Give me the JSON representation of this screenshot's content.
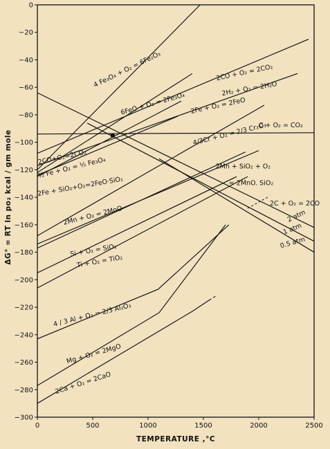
{
  "chart_data": {
    "type": "line",
    "xlabel": "TEMPERATURE ,°C",
    "ylabel": "ΔG° = RT ln po₂  kcal / gm mole",
    "xlim": [
      0,
      2500
    ],
    "ylim": [
      -300,
      0
    ],
    "xticks": [
      0,
      500,
      1000,
      1500,
      2000,
      2500
    ],
    "yticks": [
      0,
      -20,
      -40,
      -60,
      -80,
      -100,
      -120,
      -140,
      -160,
      -180,
      -200,
      -220,
      -240,
      -260,
      -280,
      -300
    ],
    "grid": false,
    "colors": {
      "background": "#f2e2c0",
      "ink": "#111111"
    },
    "series": [
      {
        "name": "4Fe3O4 + O2 = 6Fe2O3",
        "points": [
          [
            0,
            -120
          ],
          [
            1470,
            0
          ]
        ]
      },
      {
        "name": "6FeO + O2 = 2Fe3O4",
        "points": [
          [
            0,
            -122
          ],
          [
            1400,
            -50
          ]
        ]
      },
      {
        "name": "2CO + O2 = 2CO2",
        "points": [
          [
            0,
            -108
          ],
          [
            2450,
            -25
          ]
        ]
      },
      {
        "name": "2H2 + O2 = 2H2O",
        "points": [
          [
            0,
            -117
          ],
          [
            2350,
            -50
          ]
        ]
      },
      {
        "name": "2Fe + O2 = 2FeO",
        "points": [
          [
            0,
            -124
          ],
          [
            1270,
            -81
          ]
        ]
      },
      {
        "name": "C + O2 = CO2",
        "points": [
          [
            0,
            -94
          ],
          [
            2500,
            -93
          ]
        ]
      },
      {
        "name": "4/3Cr + O2 = 2/3 Cr2O3",
        "points": [
          [
            0,
            -168
          ],
          [
            2050,
            -73
          ]
        ]
      },
      {
        "name": "2Fe + SiO2 + O2 = 2FeO·SiO2",
        "points": [
          [
            0,
            -125
          ],
          [
            1300,
            -70
          ]
        ]
      },
      {
        "name": "2Mn + SiO2 + O2 = 2MnO·SiO2",
        "points": [
          [
            0,
            -177
          ],
          [
            1880,
            -107
          ]
        ]
      },
      {
        "name": "2Mn + O2 = 2MnO",
        "points": [
          [
            0,
            -174
          ],
          [
            2000,
            -106
          ]
        ]
      },
      {
        "name": "Si + O2 = SiO2",
        "points": [
          [
            0,
            -195
          ],
          [
            1800,
            -125
          ]
        ]
      },
      {
        "name": "Ti + O2 = TiO2",
        "points": [
          [
            0,
            -206
          ],
          [
            1900,
            -125
          ]
        ]
      },
      {
        "name": "2C + O2 = 2CO (2 atm)",
        "points": [
          [
            0,
            -64
          ],
          [
            2500,
            -162
          ]
        ]
      },
      {
        "name": "2C + O2 = 2CO (1 atm)",
        "points": [
          [
            450,
            -86
          ],
          [
            2500,
            -172
          ]
        ]
      },
      {
        "name": "2C + O2 = 2CO (0.5 atm)",
        "points": [
          [
            1100,
            -112
          ],
          [
            2500,
            -180
          ]
        ]
      },
      {
        "name": "4/3 Al + O2 = 2/3 Al2O3",
        "points": [
          [
            0,
            -243
          ],
          [
            1090,
            -207
          ],
          [
            1730,
            -160
          ]
        ]
      },
      {
        "name": "Mg + O2 = 2MgO",
        "points": [
          [
            0,
            -277
          ],
          [
            1100,
            -224
          ],
          [
            1700,
            -160
          ]
        ]
      },
      {
        "name": "2Ca + O2 = 2CaO",
        "points": [
          [
            0,
            -290
          ],
          [
            1400,
            -223
          ],
          [
            1550,
            -215
          ]
        ]
      }
    ],
    "labels": [
      {
        "text": "4 Fe₃O₄ + O₂ = 6Fe₂O₃",
        "x": 520,
        "y": -60,
        "angle": -26
      },
      {
        "text": "6FeO + O₂ = 2Fe₃O₄",
        "x": 760,
        "y": -80,
        "angle": -16
      },
      {
        "text": "2CO + O₂ = 2CO₂",
        "x": 1620,
        "y": -55,
        "angle": -12
      },
      {
        "text": "2H₂ + O₂ = 2H₂O",
        "x": 1670,
        "y": -66,
        "angle": -10
      },
      {
        "text": "2Fe + O₂ = 2FeO",
        "x": 1390,
        "y": -79,
        "angle": -12
      },
      {
        "text": "C + O₂ = CO₂",
        "x": 2000,
        "y": -89,
        "angle": 0
      },
      {
        "text": "4/3Cr + O₂ = 2/3 Cr₂O₃",
        "x": 1410,
        "y": -102,
        "angle": -14
      },
      {
        "text": "2CO+O₂=2CO₂",
        "x": 10,
        "y": -116,
        "angle": -12
      },
      {
        "text": "³⁄₂ Fe + O₂ = ½ Fe₃O₄",
        "x": 10,
        "y": -126,
        "angle": -14
      },
      {
        "text": "2Fe + SiO₂+O₂=2FeO·SiO₂",
        "x": 5,
        "y": -139,
        "angle": -10
      },
      {
        "text": "2Mn + SiO₂ + O₂",
        "x": 1610,
        "y": -119,
        "angle": 0
      },
      {
        "text": "= 2MnO. SiO₂",
        "x": 1730,
        "y": -131,
        "angle": 0
      },
      {
        "text": "2C + O₂ = 2CO",
        "x": 2100,
        "y": -146,
        "angle": 0
      },
      {
        "text": "2 atm",
        "x": 2270,
        "y": -158,
        "angle": -26
      },
      {
        "text": "1 atm",
        "x": 2230,
        "y": -167,
        "angle": -22
      },
      {
        "text": "0.5 atm",
        "x": 2200,
        "y": -177,
        "angle": -16
      },
      {
        "text": "2Mn + O₂ = 2MnO",
        "x": 240,
        "y": -160,
        "angle": -14
      },
      {
        "text": "Si + O₂ = SiO₂",
        "x": 300,
        "y": -183,
        "angle": -10
      },
      {
        "text": "Ti + O₂ = TiO₂",
        "x": 360,
        "y": -191,
        "angle": -10
      },
      {
        "text": "4 / 3 Al + O₂ = 2/3 Al₂O₃",
        "x": 150,
        "y": -234,
        "angle": -14
      },
      {
        "text": "Mg + O₂ = 2MgO",
        "x": 270,
        "y": -261,
        "angle": -16
      },
      {
        "text": "2Ca + O₂ = 2CaO",
        "x": 170,
        "y": -283,
        "angle": -18
      }
    ]
  }
}
